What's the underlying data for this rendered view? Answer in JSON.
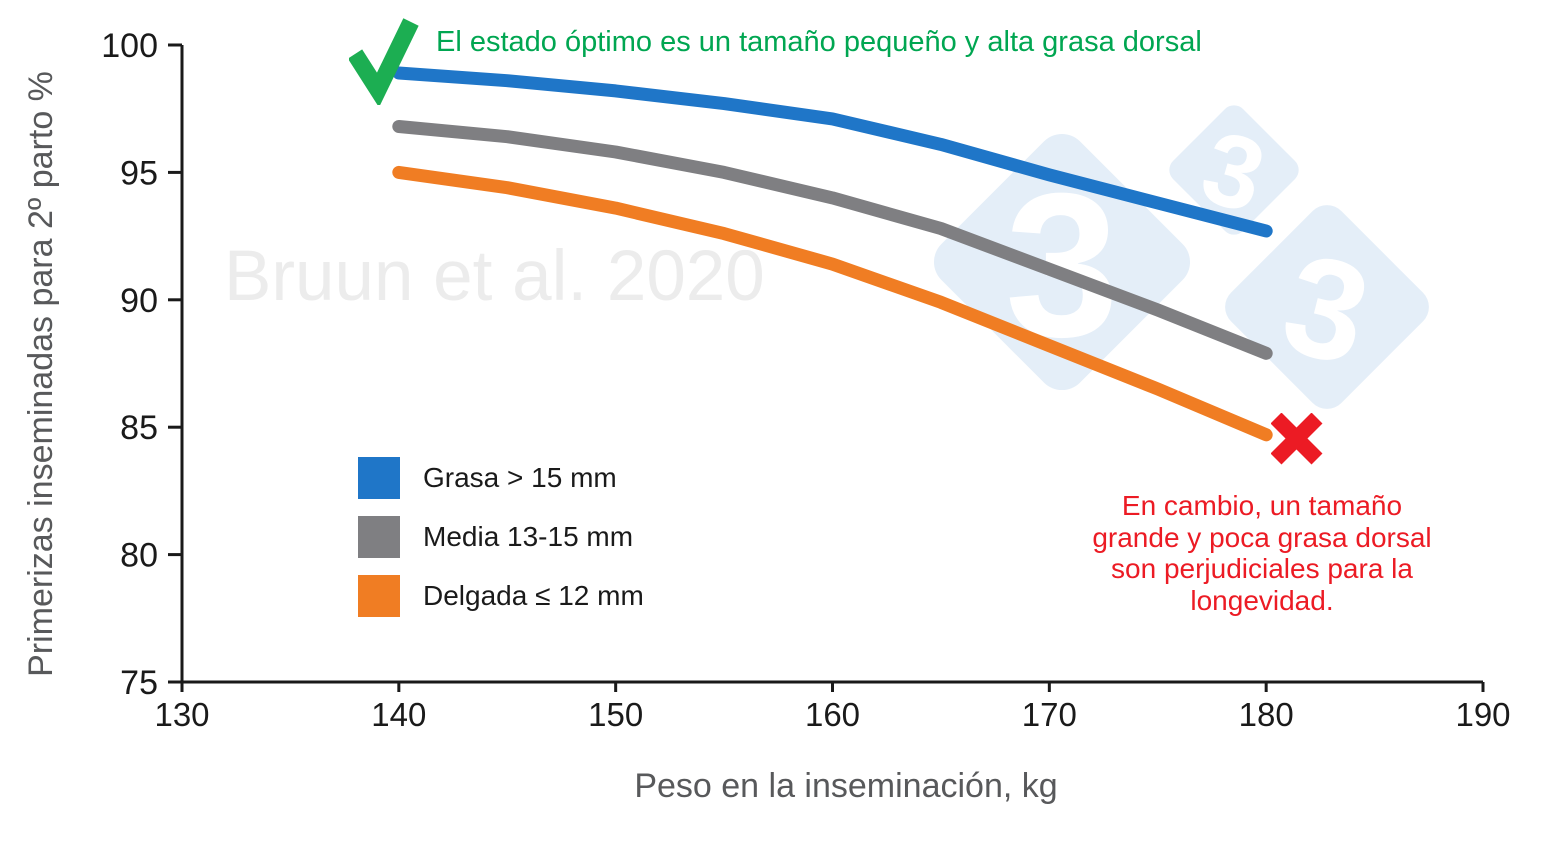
{
  "chart_data": {
    "type": "line",
    "title": "",
    "xlabel": "Peso en la inseminación, kg",
    "ylabel": "Primerizas inseminadas para 2º parto %",
    "xlim": [
      130,
      190
    ],
    "ylim": [
      75,
      100
    ],
    "x_ticks": [
      130,
      140,
      150,
      160,
      170,
      180,
      190
    ],
    "y_ticks": [
      75,
      80,
      85,
      90,
      95,
      100
    ],
    "grid": false,
    "legend_position": "inside-lower-left",
    "x": [
      140,
      145,
      150,
      155,
      160,
      165,
      170,
      175,
      180
    ],
    "series": [
      {
        "name": "Grasa > 15 mm",
        "color": "#1F76C8",
        "values": [
          98.9,
          98.6,
          98.2,
          97.7,
          97.1,
          96.1,
          94.9,
          93.8,
          92.7
        ]
      },
      {
        "name": "Media 13-15 mm",
        "color": "#7F7F82",
        "values": [
          96.8,
          96.4,
          95.8,
          95.0,
          94.0,
          92.8,
          91.2,
          89.6,
          87.9
        ]
      },
      {
        "name": "Delgada ≤ 12 mm",
        "color": "#F07D23",
        "values": [
          95.0,
          94.4,
          93.6,
          92.6,
          91.4,
          89.9,
          88.2,
          86.5,
          84.7
        ]
      }
    ]
  },
  "annotations": {
    "green": {
      "text": "El estado óptimo es un tamaño pequeño y alta grasa dorsal",
      "color": "#00A651",
      "check_color": "#1CAE52"
    },
    "red": {
      "lines": [
        "En cambio, un tamaño",
        "grande y poca grasa dorsal",
        "son perjudiciales para la",
        "longevidad."
      ],
      "color": "#EC1B24",
      "cross_color": "#EC1B24"
    }
  },
  "watermarks": {
    "citation": "Bruun et al. 2020",
    "citation_color": "#ECECEC",
    "logo_digit": "3",
    "logo_tint": "rgba(31,118,200,0.12)",
    "logo_digit_color": "#FFFFFF"
  },
  "axis_style": {
    "line_color": "#1A1A1A",
    "tick_label_color": "#1A1A1A",
    "axis_title_color": "#58595B"
  }
}
